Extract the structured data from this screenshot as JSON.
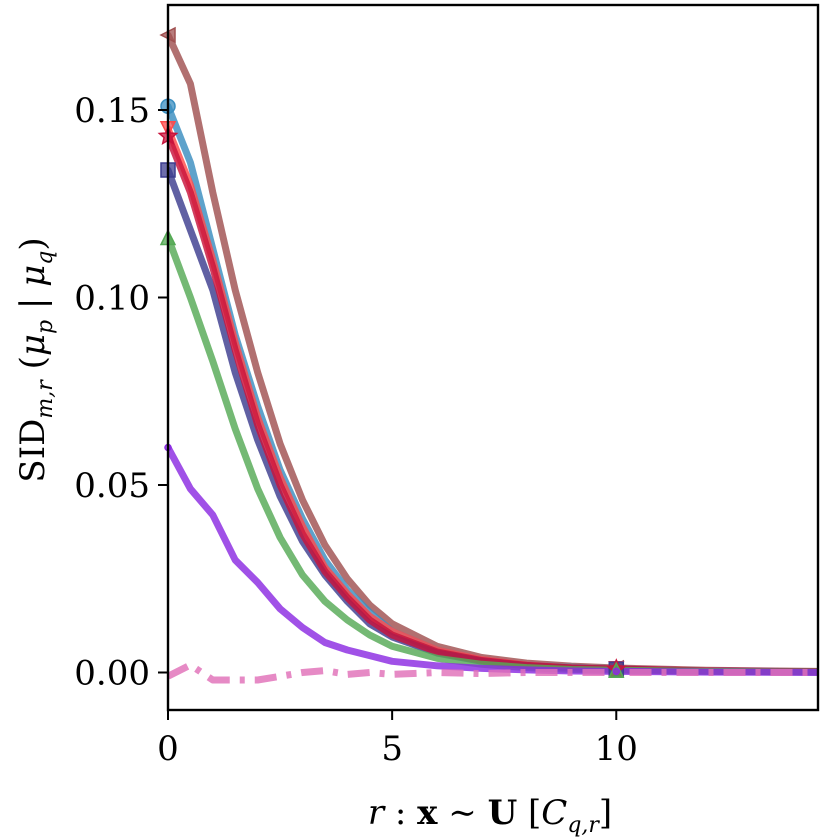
{
  "chart_data": {
    "type": "line",
    "xlabel_parts": [
      "r",
      " : ",
      "x",
      " ∼ ",
      "U",
      " [",
      "C",
      "q,r",
      "]"
    ],
    "ylabel_parts": [
      "SID",
      "m,r",
      " (",
      "μ",
      "p",
      " | ",
      "μ",
      "q",
      ")"
    ],
    "xlim": [
      0,
      14.5
    ],
    "ylim": [
      -0.01,
      0.178
    ],
    "xticks": [
      0,
      5,
      10
    ],
    "xtick_labels": [
      "0",
      "5",
      "10"
    ],
    "yticks": [
      0.0,
      0.05,
      0.1,
      0.15
    ],
    "ytick_labels": [
      "0.00",
      "0.05",
      "0.10",
      "0.15"
    ],
    "grid": false,
    "series": [
      {
        "color": "#a05050",
        "marker": "triangle-left",
        "style": "solid",
        "x": [
          0,
          0.5,
          1,
          1.5,
          2,
          2.5,
          3,
          3.5,
          4,
          4.5,
          5,
          6,
          7,
          8,
          9,
          10,
          12,
          14.5
        ],
        "y": [
          0.17,
          0.157,
          0.128,
          0.102,
          0.08,
          0.061,
          0.046,
          0.034,
          0.025,
          0.018,
          0.013,
          0.007,
          0.004,
          0.0025,
          0.0017,
          0.0012,
          0.0006,
          0.0003
        ]
      },
      {
        "color": "#3a8ec0",
        "marker": "circle",
        "style": "solid",
        "x": [
          0,
          0.5,
          1,
          1.5,
          2,
          2.5,
          3,
          3.5,
          4,
          4.5,
          5,
          6,
          7,
          8,
          9,
          10,
          12,
          14.5
        ],
        "y": [
          0.151,
          0.136,
          0.113,
          0.09,
          0.071,
          0.054,
          0.041,
          0.03,
          0.022,
          0.016,
          0.011,
          0.006,
          0.0035,
          0.002,
          0.0014,
          0.001,
          0.0005,
          0.0002
        ]
      },
      {
        "color": "#ff4a4a",
        "marker": "triangle-down",
        "style": "solid",
        "x": [
          0,
          0.5,
          1,
          1.5,
          2,
          2.5,
          3,
          3.5,
          4,
          4.5,
          5,
          6,
          7,
          8,
          9,
          10,
          12,
          14.5
        ],
        "y": [
          0.145,
          0.13,
          0.11,
          0.088,
          0.068,
          0.052,
          0.039,
          0.028,
          0.021,
          0.015,
          0.011,
          0.006,
          0.0035,
          0.002,
          0.0013,
          0.001,
          0.0005,
          0.0002
        ]
      },
      {
        "color": "#3d3d8f",
        "marker": "square",
        "style": "solid",
        "x": [
          0,
          0.5,
          1,
          1.5,
          2,
          2.5,
          3,
          3.5,
          4,
          4.5,
          5,
          6,
          7,
          8,
          9,
          10,
          12,
          14.5
        ],
        "y": [
          0.134,
          0.118,
          0.102,
          0.08,
          0.062,
          0.047,
          0.035,
          0.026,
          0.019,
          0.013,
          0.0095,
          0.0052,
          0.003,
          0.0018,
          0.0012,
          0.0009,
          0.0004,
          0.0002
        ]
      },
      {
        "color": "#c8143c",
        "marker": "star",
        "style": "solid",
        "x": [
          0,
          0.5,
          1,
          1.5,
          2,
          2.5,
          3,
          3.5,
          4,
          4.5,
          5,
          6,
          7,
          8,
          9,
          10,
          12,
          14.5
        ],
        "y": [
          0.143,
          0.128,
          0.108,
          0.086,
          0.066,
          0.05,
          0.037,
          0.027,
          0.02,
          0.014,
          0.01,
          0.0055,
          0.0032,
          0.0019,
          0.0012,
          0.0009,
          0.0004,
          0.0002
        ]
      },
      {
        "color": "#55aa55",
        "marker": "triangle-up",
        "style": "solid",
        "x": [
          0,
          0.5,
          1,
          1.5,
          2,
          2.5,
          3,
          3.5,
          4,
          4.5,
          5,
          6,
          7,
          8,
          9,
          10,
          12,
          14.5
        ],
        "y": [
          0.116,
          0.1,
          0.083,
          0.065,
          0.049,
          0.036,
          0.026,
          0.019,
          0.014,
          0.01,
          0.007,
          0.0038,
          0.0022,
          0.0013,
          0.0008,
          0.0006,
          0.0003,
          0.0001
        ]
      },
      {
        "color": "#8b2be2",
        "marker": "dot",
        "style": "solid",
        "x": [
          0,
          0.5,
          1,
          1.5,
          2,
          2.5,
          3,
          3.5,
          4,
          4.5,
          5,
          6,
          7,
          8,
          9,
          10,
          12,
          14.5
        ],
        "y": [
          0.06,
          0.049,
          0.042,
          0.03,
          0.024,
          0.017,
          0.012,
          0.008,
          0.006,
          0.0045,
          0.003,
          0.0018,
          0.0011,
          0.0007,
          0.0004,
          0.0003,
          0.0001,
          0.0
        ]
      },
      {
        "color": "#e070b8",
        "marker": "none",
        "style": "dashdot",
        "x": [
          0,
          0.5,
          1,
          1.5,
          2,
          2.5,
          3,
          3.5,
          4,
          4.5,
          5,
          6,
          7,
          8,
          9,
          10,
          12,
          14.5
        ],
        "y": [
          -0.001,
          0.002,
          -0.002,
          -0.002,
          -0.002,
          -0.001,
          0.0,
          0.0005,
          -0.0005,
          0.0,
          -0.0005,
          0.0,
          -0.0003,
          0.0,
          0.0,
          0.0,
          0.0,
          0.0
        ]
      }
    ]
  }
}
